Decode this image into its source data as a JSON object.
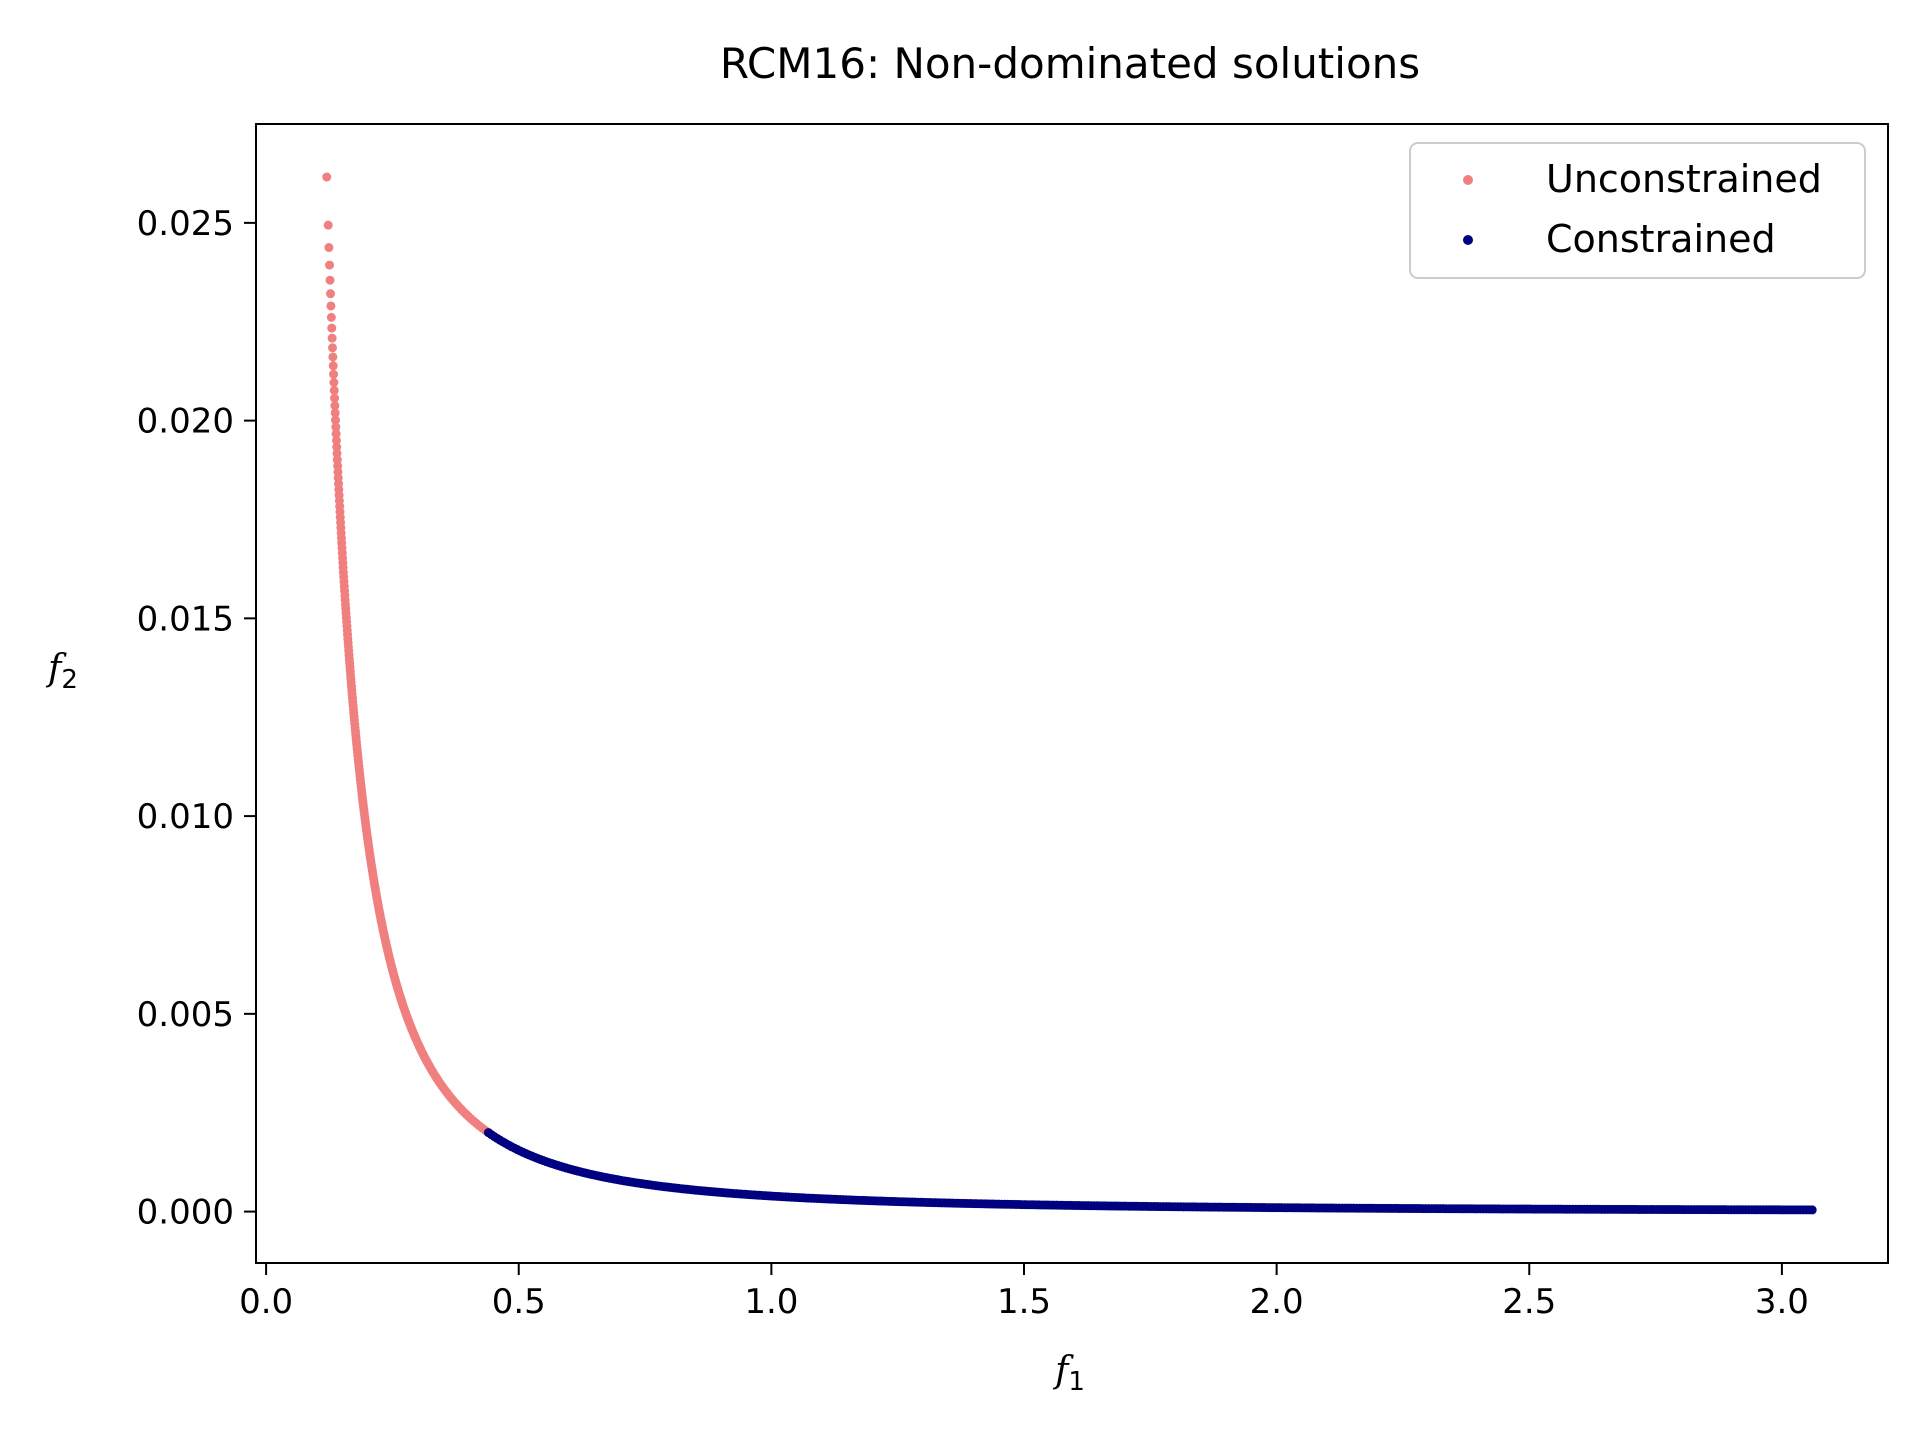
{
  "chart_data": {
    "type": "scatter",
    "title": "RCM16: Non-dominated solutions",
    "xlabel": {
      "base": "f",
      "sub": "1"
    },
    "ylabel": {
      "base": "f",
      "sub": "2"
    },
    "xlim": [
      -0.02,
      3.21
    ],
    "ylim": [
      -0.0013,
      0.0275
    ],
    "xticks": [
      0.0,
      0.5,
      1.0,
      1.5,
      2.0,
      2.5,
      3.0
    ],
    "xtick_labels": [
      "0.0",
      "0.5",
      "1.0",
      "1.5",
      "2.0",
      "2.5",
      "3.0"
    ],
    "yticks": [
      0.0,
      0.005,
      0.01,
      0.015,
      0.02,
      0.025
    ],
    "ytick_labels": [
      "0.000",
      "0.005",
      "0.010",
      "0.015",
      "0.020",
      "0.025"
    ],
    "legend_position": "top-right",
    "series": [
      {
        "name": "Unconstrained",
        "color": "#f08080",
        "curve": "f2 = 0.000393 / f1^1.98",
        "x_range": [
          0.12,
          0.44
        ],
        "point_count": 230
      },
      {
        "name": "Constrained",
        "color": "#000080",
        "curve": "f2 = 0.000393 / f1^1.98",
        "x_range": [
          0.44,
          3.06
        ],
        "point_count": 460
      }
    ]
  }
}
